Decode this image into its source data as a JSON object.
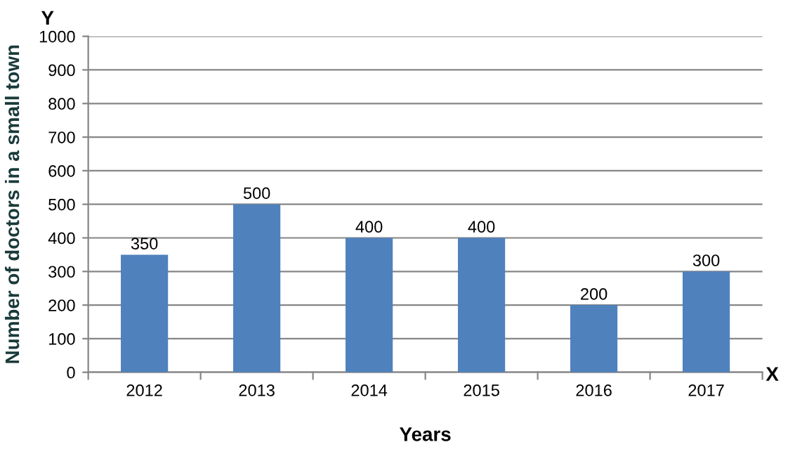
{
  "chart_data": {
    "type": "bar",
    "xlabel": "Years",
    "ylabel": "Number of doctors in a small town",
    "categories": [
      "2012",
      "2013",
      "2014",
      "2015",
      "2016",
      "2017"
    ],
    "values": [
      350,
      500,
      400,
      400,
      200,
      300
    ],
    "color": "#4f81bd",
    "ylim": [
      0,
      1000
    ],
    "yticks": [
      0,
      100,
      200,
      300,
      400,
      500,
      600,
      700,
      800,
      900,
      1000
    ],
    "grid": "y",
    "data_labels": true,
    "legend": false,
    "annotations": [
      "Y",
      "X"
    ]
  }
}
